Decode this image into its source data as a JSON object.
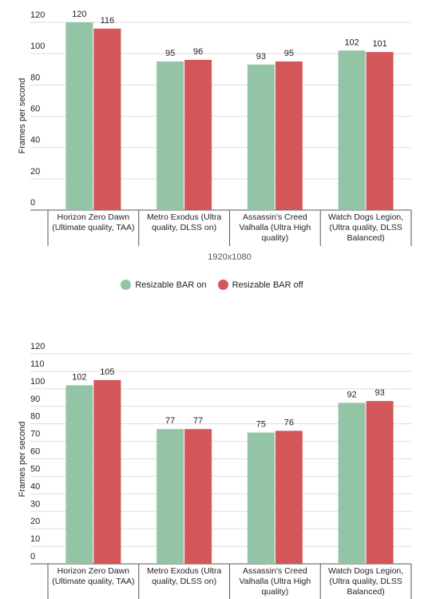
{
  "chart_data": [
    {
      "type": "bar",
      "ylabel": "Frames per second",
      "xlabel": "1920x1080",
      "categories": [
        "Horizon Zero Dawn (Ultimate quality, TAA)",
        "Metro Exodus (Ultra quality, DLSS on)",
        "Assassin's Creed Valhalla (Ultra High quality)",
        "Watch Dogs Legion, (Ultra quality, DLSS Balanced)"
      ],
      "series": [
        {
          "name": "Resizable BAR on",
          "color": "#93c4a6",
          "values": [
            120,
            95,
            93,
            102
          ]
        },
        {
          "name": "Resizable BAR off",
          "color": "#d35659",
          "values": [
            116,
            96,
            95,
            101
          ]
        }
      ],
      "ylim": [
        0,
        120
      ],
      "yticks": [
        0,
        20,
        40,
        60,
        80,
        100,
        120
      ],
      "grid": true,
      "legend": "bottom"
    },
    {
      "type": "bar",
      "ylabel": "Frames per second",
      "categories": [
        "Horizon Zero Dawn (Ultimate quality, TAA)",
        "Metro Exodus (Ultra quality, DLSS on)",
        "Assassin's Creed Valhalla (Ultra High quality)",
        "Watch Dogs Legion, (Ultra quality, DLSS Balanced)"
      ],
      "series": [
        {
          "color": "#93c4a6",
          "values": [
            102,
            77,
            75,
            92
          ]
        },
        {
          "color": "#d35659",
          "values": [
            105,
            77,
            76,
            93
          ]
        }
      ],
      "ylim": [
        0,
        120
      ],
      "yticks": [
        0,
        10,
        20,
        30,
        40,
        50,
        60,
        70,
        80,
        90,
        100,
        110,
        120
      ],
      "grid": true
    }
  ]
}
